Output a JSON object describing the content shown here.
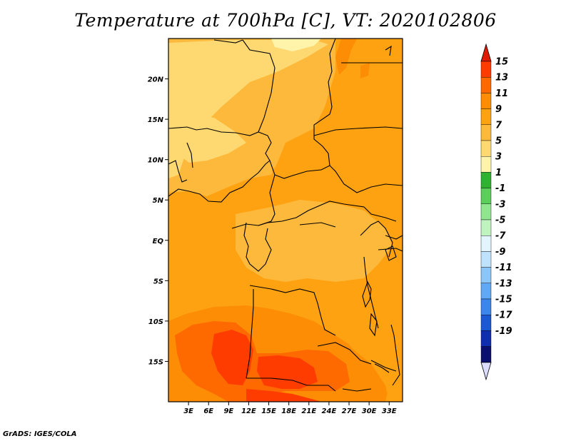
{
  "title": "Temperature at 700hPa [C], VT: 2020102806",
  "credit": "GrADS: IGES/COLA",
  "map_extent": {
    "lon": [
      0,
      35
    ],
    "lat": [
      -20,
      25
    ]
  },
  "lat_ticks": [
    {
      "label": "20N",
      "lat": 20
    },
    {
      "label": "15N",
      "lat": 15
    },
    {
      "label": "10N",
      "lat": 10
    },
    {
      "label": "5N",
      "lat": 5
    },
    {
      "label": "EQ",
      "lat": 0
    },
    {
      "label": "5S",
      "lat": -5
    },
    {
      "label": "10S",
      "lat": -10
    },
    {
      "label": "15S",
      "lat": -15
    }
  ],
  "lon_ticks": [
    {
      "label": "3E",
      "lon": 3
    },
    {
      "label": "6E",
      "lon": 6
    },
    {
      "label": "9E",
      "lon": 9
    },
    {
      "label": "12E",
      "lon": 12
    },
    {
      "label": "15E",
      "lon": 15
    },
    {
      "label": "18E",
      "lon": 18
    },
    {
      "label": "21E",
      "lon": 21
    },
    {
      "label": "24E",
      "lon": 24
    },
    {
      "label": "27E",
      "lon": 27
    },
    {
      "label": "30E",
      "lon": 30
    },
    {
      "label": "33E",
      "lon": 33
    }
  ],
  "colorbar": {
    "levels": [
      "15",
      "13",
      "11",
      "9",
      "7",
      "5",
      "3",
      "1",
      "-1",
      "-3",
      "-5",
      "-7",
      "-9",
      "-11",
      "-13",
      "-15",
      "-17",
      "-19"
    ],
    "colors": [
      "#ff3c00",
      "#ff6a00",
      "#fd8d04",
      "#ffa211",
      "#fdb93b",
      "#fed870",
      "#fff4aa",
      "#2fb22f",
      "#5acf5a",
      "#8fe68f",
      "#bff3bf",
      "#e2f5ff",
      "#bfe3ff",
      "#8bc6fa",
      "#5fa8f5",
      "#3b86ea",
      "#1a59d2",
      "#0f2fb0",
      "#0a0f70"
    ],
    "top_color": "#e01a00",
    "bottom_color": "#dcdcff"
  },
  "field_colors": {
    "t7": "#fdb93b",
    "t9": "#ffa211",
    "t11": "#fd8d04",
    "t13": "#ff6a00",
    "t15": "#ff3c00",
    "t5": "#fed870",
    "t3": "#fff4aa"
  }
}
